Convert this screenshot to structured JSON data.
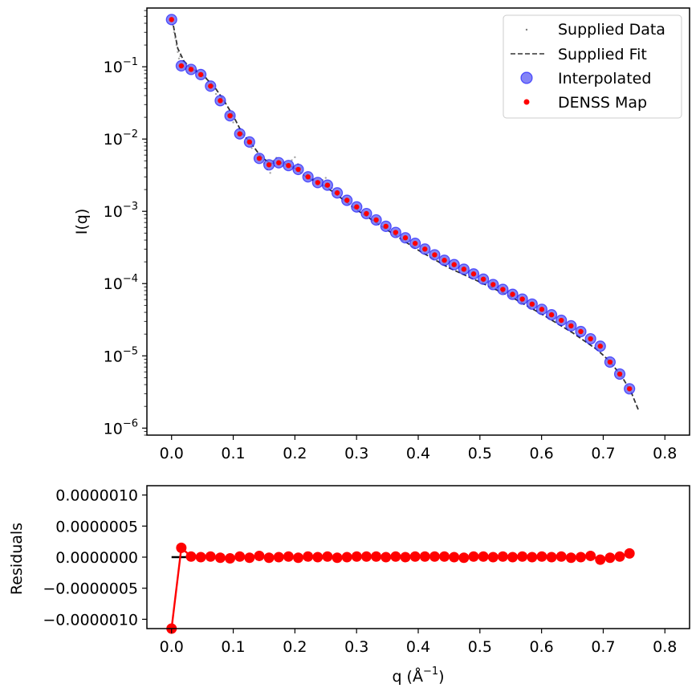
{
  "chart_data": [
    {
      "type": "scatter",
      "yscale": "log",
      "xlim": [
        -0.04,
        0.84
      ],
      "ylim": [
        8e-07,
        0.65
      ],
      "x_ticks": [
        0.0,
        0.1,
        0.2,
        0.3,
        0.4,
        0.5,
        0.6,
        0.7,
        0.8
      ],
      "x_tick_labels": [
        "0.0",
        "0.1",
        "0.2",
        "0.3",
        "0.4",
        "0.5",
        "0.6",
        "0.7",
        "0.8"
      ],
      "y_ticks": [
        0.1,
        0.01,
        0.001,
        0.0001,
        1e-05,
        1e-06
      ],
      "y_tick_labels": [
        {
          "base": "10",
          "exp": "−1"
        },
        {
          "base": "10",
          "exp": "−2"
        },
        {
          "base": "10",
          "exp": "−3"
        },
        {
          "base": "10",
          "exp": "−4"
        },
        {
          "base": "10",
          "exp": "−5"
        },
        {
          "base": "10",
          "exp": "−6"
        }
      ],
      "xlabel": "",
      "ylabel": "I(q)",
      "legend_position": "top-right",
      "legend": [
        "Supplied Data",
        "Supplied Fit",
        "Interpolated",
        "DENSS Map"
      ],
      "colors": {
        "data": "#808080",
        "fit": "#333333",
        "interpolated_face": "#6e6ef4",
        "interpolated_edge": "#0000ff",
        "denss": "#ff0000"
      },
      "series": [
        {
          "name": "Supplied Data",
          "style": "points",
          "x": [
            0.002,
            0.004,
            0.006,
            0.008,
            0.01,
            0.012,
            0.014,
            0.016,
            0.018,
            0.02,
            0.022,
            0.024,
            0.026,
            0.028,
            0.03,
            0.034,
            0.04,
            0.048,
            0.056,
            0.064,
            0.072,
            0.08,
            0.09,
            0.1,
            0.11,
            0.12,
            0.13,
            0.14,
            0.145,
            0.15,
            0.155,
            0.16,
            0.165,
            0.17,
            0.18,
            0.19,
            0.195,
            0.2,
            0.205,
            0.21,
            0.22,
            0.23,
            0.24,
            0.245,
            0.25,
            0.255,
            0.26,
            0.27,
            0.28
          ],
          "y": [
            0.38,
            0.3,
            0.25,
            0.2,
            0.16,
            0.13,
            0.14,
            0.11,
            0.12,
            0.1,
            0.095,
            0.11,
            0.085,
            0.09,
            0.1,
            0.095,
            0.09,
            0.082,
            0.07,
            0.055,
            0.042,
            0.032,
            0.022,
            0.017,
            0.012,
            0.009,
            0.0075,
            0.006,
            0.0052,
            0.0046,
            0.0038,
            0.0034,
            0.005,
            0.0055,
            0.0048,
            0.0043,
            0.0051,
            0.0056,
            0.0045,
            0.004,
            0.0033,
            0.0028,
            0.0025,
            0.0027,
            0.0029,
            0.0024,
            0.0021,
            0.0017,
            0.0014
          ]
        },
        {
          "name": "Supplied Fit",
          "style": "dashed",
          "x": [
            0.003,
            0.01,
            0.02,
            0.03,
            0.05,
            0.07,
            0.085,
            0.1,
            0.115,
            0.13,
            0.145,
            0.16,
            0.175,
            0.19,
            0.205,
            0.22,
            0.24,
            0.26,
            0.3,
            0.35,
            0.4,
            0.45,
            0.5,
            0.55,
            0.6,
            0.65,
            0.69,
            0.71,
            0.73,
            0.745,
            0.758
          ],
          "y": [
            0.37,
            0.18,
            0.12,
            0.097,
            0.078,
            0.052,
            0.034,
            0.021,
            0.0118,
            0.0085,
            0.0057,
            0.0046,
            0.0047,
            0.0044,
            0.0037,
            0.0029,
            0.0025,
            0.0019,
            0.00105,
            0.00055,
            0.00029,
            0.000165,
            0.000105,
            6.6e-05,
            3.8e-05,
            2.1e-05,
            1.22e-05,
            8.5e-06,
            5.2e-06,
            3.2e-06,
            1.7e-06
          ]
        },
        {
          "name": "Interpolated",
          "style": "markers",
          "x": [
            0.0,
            0.0158,
            0.0316,
            0.0474,
            0.0632,
            0.079,
            0.0948,
            0.1106,
            0.1264,
            0.1422,
            0.158,
            0.1738,
            0.1896,
            0.2054,
            0.2212,
            0.237,
            0.2528,
            0.2686,
            0.2844,
            0.3002,
            0.316,
            0.3318,
            0.3476,
            0.3634,
            0.3792,
            0.395,
            0.4108,
            0.4266,
            0.4424,
            0.4582,
            0.474,
            0.4898,
            0.5056,
            0.5214,
            0.5372,
            0.553,
            0.5688,
            0.5846,
            0.6004,
            0.6162,
            0.632,
            0.6478,
            0.6636,
            0.6794,
            0.6952,
            0.711,
            0.7268,
            0.7426
          ],
          "y": [
            0.45,
            0.103,
            0.092,
            0.078,
            0.054,
            0.034,
            0.021,
            0.0118,
            0.0091,
            0.0054,
            0.0044,
            0.0047,
            0.0043,
            0.0038,
            0.003,
            0.0025,
            0.0023,
            0.0018,
            0.00142,
            0.00115,
            0.00093,
            0.00076,
            0.00062,
            0.00051,
            0.00043,
            0.00036,
            0.0003,
            0.00025,
            0.00021,
            0.000183,
            0.000158,
            0.000136,
            0.000115,
            9.7e-05,
            8.3e-05,
            7.1e-05,
            6.1e-05,
            5.2e-05,
            4.4e-05,
            3.7e-05,
            3.1e-05,
            2.6e-05,
            2.17e-05,
            1.72e-05,
            1.36e-05,
            8.2e-06,
            5.6e-06,
            3.5e-06
          ]
        },
        {
          "name": "DENSS Map",
          "style": "dots",
          "x": [
            0.0,
            0.0158,
            0.0316,
            0.0474,
            0.0632,
            0.079,
            0.0948,
            0.1106,
            0.1264,
            0.1422,
            0.158,
            0.1738,
            0.1896,
            0.2054,
            0.2212,
            0.237,
            0.2528,
            0.2686,
            0.2844,
            0.3002,
            0.316,
            0.3318,
            0.3476,
            0.3634,
            0.3792,
            0.395,
            0.4108,
            0.4266,
            0.4424,
            0.4582,
            0.474,
            0.4898,
            0.5056,
            0.5214,
            0.5372,
            0.553,
            0.5688,
            0.5846,
            0.6004,
            0.6162,
            0.632,
            0.6478,
            0.6636,
            0.6794,
            0.6952,
            0.711,
            0.7268,
            0.7426
          ],
          "y": [
            0.45,
            0.103,
            0.092,
            0.078,
            0.054,
            0.034,
            0.021,
            0.0118,
            0.0091,
            0.0054,
            0.0044,
            0.0047,
            0.0043,
            0.0038,
            0.003,
            0.0025,
            0.0023,
            0.0018,
            0.00142,
            0.00115,
            0.00093,
            0.00076,
            0.00062,
            0.00051,
            0.00043,
            0.00036,
            0.0003,
            0.00025,
            0.00021,
            0.000183,
            0.000158,
            0.000136,
            0.000115,
            9.7e-05,
            8.3e-05,
            7.1e-05,
            6.1e-05,
            5.2e-05,
            4.4e-05,
            3.7e-05,
            3.1e-05,
            2.6e-05,
            2.17e-05,
            1.72e-05,
            1.36e-05,
            8.2e-06,
            5.6e-06,
            3.5e-06
          ]
        }
      ]
    },
    {
      "type": "line",
      "xlim": [
        -0.04,
        0.84
      ],
      "ylim": [
        -1.15e-06,
        1.15e-06
      ],
      "x_ticks": [
        0.0,
        0.1,
        0.2,
        0.3,
        0.4,
        0.5,
        0.6,
        0.7,
        0.8
      ],
      "x_tick_labels": [
        "0.0",
        "0.1",
        "0.2",
        "0.3",
        "0.4",
        "0.5",
        "0.6",
        "0.7",
        "0.8"
      ],
      "y_ticks": [
        1e-06,
        5e-07,
        0.0,
        -5e-07,
        -1e-06
      ],
      "y_tick_labels": [
        "0.0000010",
        "0.0000005",
        "0.0000000",
        "−0.0000005",
        "−0.0000010"
      ],
      "xlabel": {
        "prefix": "q (Å",
        "exp": "−1",
        "suffix": ")"
      },
      "ylabel": "Residuals",
      "colors": {
        "residuals": "#ff0000",
        "zero_line": "#000000"
      },
      "zero_line": {
        "x": [
          0.0,
          0.03
        ],
        "y": [
          0.0,
          0.0
        ]
      },
      "series": [
        {
          "name": "",
          "x": [
            0.0,
            0.0158,
            0.0316,
            0.0474,
            0.0632,
            0.079,
            0.0948,
            0.1106,
            0.1264,
            0.1422,
            0.158,
            0.1738,
            0.1896,
            0.2054,
            0.2212,
            0.237,
            0.2528,
            0.2686,
            0.2844,
            0.3002,
            0.316,
            0.3318,
            0.3476,
            0.3634,
            0.3792,
            0.395,
            0.4108,
            0.4266,
            0.4424,
            0.4582,
            0.474,
            0.4898,
            0.5056,
            0.5214,
            0.5372,
            0.553,
            0.5688,
            0.5846,
            0.6004,
            0.6162,
            0.632,
            0.6478,
            0.6636,
            0.6794,
            0.6952,
            0.711,
            0.7268,
            0.7426
          ],
          "y": [
            -1.15e-06,
            1.5e-07,
            1e-08,
            0.0,
            1e-08,
            -1e-08,
            -2e-08,
            1e-08,
            -1e-08,
            2e-08,
            -1e-08,
            0.0,
            1e-08,
            -1e-08,
            1e-08,
            0.0,
            1e-08,
            -1e-08,
            0.0,
            1e-08,
            1e-08,
            1e-08,
            0.0,
            1e-08,
            0.0,
            1e-08,
            1e-08,
            1e-08,
            1e-08,
            0.0,
            -1e-08,
            1e-08,
            1e-08,
            0.0,
            1e-08,
            0.0,
            1e-08,
            0.0,
            1e-08,
            0.0,
            1e-08,
            -1e-08,
            0.0,
            2e-08,
            -4e-08,
            -1e-08,
            1e-08,
            6e-08
          ]
        }
      ]
    }
  ]
}
